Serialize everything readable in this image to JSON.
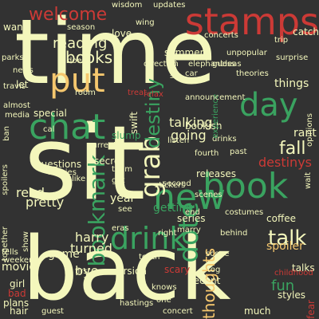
{
  "palette": {
    "background": "#323232",
    "cream": "#f4f7bc",
    "green": "#3aa360",
    "red": "#cc3a36",
    "peach": "#f5c76e",
    "lime": "#b8de86",
    "dark_green": "#1f8a4e"
  },
  "words": [
    {
      "text": "time",
      "color": "cream"
    },
    {
      "text": "sit",
      "color": "cream"
    },
    {
      "text": "back",
      "color": "cream"
    },
    {
      "text": "stamps",
      "color": "red"
    },
    {
      "text": "chat",
      "color": "green"
    },
    {
      "text": "put",
      "color": "peach"
    },
    {
      "text": "day",
      "color": "green"
    },
    {
      "text": "book",
      "color": "green"
    },
    {
      "text": "new",
      "color": "green"
    },
    {
      "text": "drink",
      "color": "green"
    },
    {
      "text": "grab",
      "color": "cream"
    },
    {
      "text": "dote",
      "color": "green"
    },
    {
      "text": "bookmark",
      "color": "green"
    },
    {
      "text": "destiny",
      "color": "green"
    },
    {
      "text": "talk",
      "color": "cream"
    },
    {
      "text": "fall",
      "color": "cream"
    },
    {
      "text": "destinys",
      "color": "red"
    },
    {
      "text": "welcome",
      "color": "red"
    },
    {
      "text": "books",
      "color": "cream"
    },
    {
      "text": "reading",
      "color": "cream"
    },
    {
      "text": "thoughts",
      "color": "peach"
    },
    {
      "text": "fun",
      "color": "green"
    },
    {
      "text": "releases",
      "color": "cream"
    },
    {
      "text": "summer",
      "color": "cream"
    },
    {
      "text": "things",
      "color": "cream"
    },
    {
      "text": "rant",
      "color": "cream"
    },
    {
      "text": "going",
      "color": "cream"
    },
    {
      "text": "talking",
      "color": "cream"
    },
    {
      "text": "harry",
      "color": "cream"
    },
    {
      "text": "turned",
      "color": "cream"
    },
    {
      "text": "bye",
      "color": "cream"
    },
    {
      "text": "movie",
      "color": "cream"
    },
    {
      "text": "pretty",
      "color": "cream"
    },
    {
      "text": "read",
      "color": "cream"
    },
    {
      "text": "game",
      "color": "cream"
    },
    {
      "text": "version",
      "color": "cream"
    },
    {
      "text": "recent",
      "color": "cream"
    },
    {
      "text": "much",
      "color": "cream"
    },
    {
      "text": "styles",
      "color": "cream"
    },
    {
      "text": "fear",
      "color": "red"
    },
    {
      "text": "talks",
      "color": "cream"
    },
    {
      "text": "coffee",
      "color": "cream"
    },
    {
      "text": "series",
      "color": "cream"
    },
    {
      "text": "getting",
      "color": "green"
    },
    {
      "text": "year",
      "color": "cream"
    },
    {
      "text": "spoiler",
      "color": "peach"
    },
    {
      "text": "questions",
      "color": "cream"
    },
    {
      "text": "secret",
      "color": "cream"
    },
    {
      "text": "movies",
      "color": "cream"
    },
    {
      "text": "like",
      "color": "cream"
    },
    {
      "text": "team",
      "color": "cream"
    },
    {
      "text": "got",
      "color": "cream"
    },
    {
      "text": "bookish",
      "color": "cream"
    },
    {
      "text": "drinks",
      "color": "cream"
    },
    {
      "text": "end",
      "color": "cream"
    },
    {
      "text": "special",
      "color": "cream"
    },
    {
      "text": "experience",
      "color": "green"
    },
    {
      "text": "relax",
      "color": "red"
    },
    {
      "text": "room",
      "color": "cream"
    },
    {
      "text": "treat",
      "color": "red"
    },
    {
      "text": "news",
      "color": "cream"
    },
    {
      "text": "let",
      "color": "cream"
    },
    {
      "text": "want",
      "color": "cream"
    },
    {
      "text": "season",
      "color": "cream"
    },
    {
      "text": "love",
      "color": "cream"
    },
    {
      "text": "wing",
      "color": "cream"
    },
    {
      "text": "updates",
      "color": "cream"
    },
    {
      "text": "wisdom",
      "color": "cream"
    },
    {
      "text": "concerts",
      "color": "cream"
    },
    {
      "text": "catch",
      "color": "cream"
    },
    {
      "text": "trip",
      "color": "cream"
    },
    {
      "text": "unpopular",
      "color": "cream"
    },
    {
      "text": "surprise",
      "color": "cream"
    },
    {
      "text": "opinions",
      "color": "cream"
    },
    {
      "text": "parks",
      "color": "cream"
    },
    {
      "text": "travis",
      "color": "cream"
    },
    {
      "text": "almost",
      "color": "cream"
    },
    {
      "text": "media",
      "color": "cream"
    },
    {
      "text": "listen",
      "color": "cream"
    },
    {
      "text": "announcement",
      "color": "cream"
    },
    {
      "text": "fourth",
      "color": "cream"
    },
    {
      "text": "swift",
      "color": "cream"
    },
    {
      "text": "slump",
      "color": "green"
    },
    {
      "text": "second",
      "color": "cream"
    },
    {
      "text": "scenes",
      "color": "cream"
    },
    {
      "text": "stickers",
      "color": "cream"
    },
    {
      "text": "costumes",
      "color": "cream"
    },
    {
      "text": "eras",
      "color": "cream"
    },
    {
      "text": "marry",
      "color": "cream"
    },
    {
      "text": "behind",
      "color": "cream"
    },
    {
      "text": "teeth",
      "color": "cream"
    },
    {
      "text": "tells",
      "color": "cream"
    },
    {
      "text": "weekend",
      "color": "cream"
    },
    {
      "text": "girl",
      "color": "cream"
    },
    {
      "text": "bad",
      "color": "red"
    },
    {
      "text": "plans",
      "color": "cream"
    },
    {
      "text": "hair",
      "color": "cream"
    },
    {
      "text": "guest",
      "color": "cream"
    },
    {
      "text": "first",
      "color": "cream"
    },
    {
      "text": "scary",
      "color": "red"
    },
    {
      "text": "tog",
      "color": "cream"
    },
    {
      "text": "concert",
      "color": "cream"
    },
    {
      "text": "knows",
      "color": "cream"
    },
    {
      "text": "childhood",
      "color": "red"
    },
    {
      "text": "spoilers",
      "color": "cream"
    },
    {
      "text": "together",
      "color": "cream"
    },
    {
      "text": "show",
      "color": "cream"
    },
    {
      "text": "does",
      "color": "cream"
    },
    {
      "text": "direction",
      "color": "cream"
    },
    {
      "text": "theories",
      "color": "cream"
    },
    {
      "text": "listeners",
      "color": "cream"
    },
    {
      "text": "elephant",
      "color": "cream"
    },
    {
      "text": "current",
      "color": "cream"
    },
    {
      "text": "cal",
      "color": "cream"
    },
    {
      "text": "see",
      "color": "cream"
    },
    {
      "text": "right",
      "color": "cream"
    },
    {
      "text": "one",
      "color": "cream"
    },
    {
      "text": "hastings",
      "color": "cream"
    },
    {
      "text": "ban",
      "color": "cream"
    },
    {
      "text": "guess",
      "color": "cream"
    },
    {
      "text": "ideas",
      "color": "cream"
    },
    {
      "text": "scene",
      "color": "cream"
    },
    {
      "text": "past",
      "color": "cream"
    },
    {
      "text": "car",
      "color": "cream"
    },
    {
      "text": "wait",
      "color": "cream"
    }
  ]
}
